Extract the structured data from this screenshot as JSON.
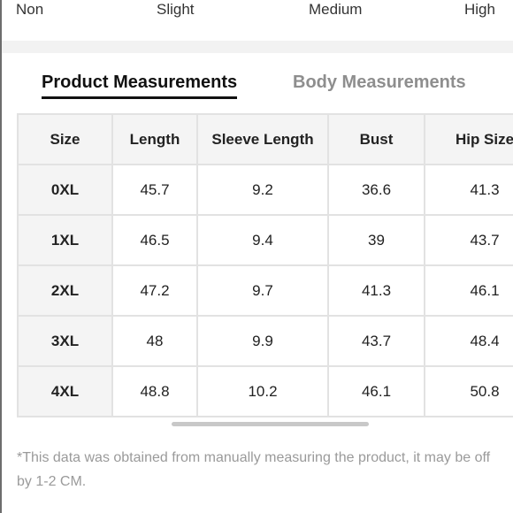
{
  "stretch_scale": {
    "labels": [
      "Non",
      "Slight",
      "Medium",
      "High"
    ]
  },
  "tabs": {
    "active": "Product Measurements",
    "inactive": "Body Measurements"
  },
  "table": {
    "headers": [
      "Size",
      "Length",
      "Sleeve Length",
      "Bust",
      "Hip Size"
    ],
    "rows": [
      [
        "0XL",
        "45.7",
        "9.2",
        "36.6",
        "41.3"
      ],
      [
        "1XL",
        "46.5",
        "9.4",
        "39",
        "43.7"
      ],
      [
        "2XL",
        "47.2",
        "9.7",
        "41.3",
        "46.1"
      ],
      [
        "3XL",
        "48",
        "9.9",
        "43.7",
        "48.4"
      ],
      [
        "4XL",
        "48.8",
        "10.2",
        "46.1",
        "50.8"
      ]
    ]
  },
  "note": "*This data was obtained from manually measuring the product, it may be off by 1-2 CM."
}
